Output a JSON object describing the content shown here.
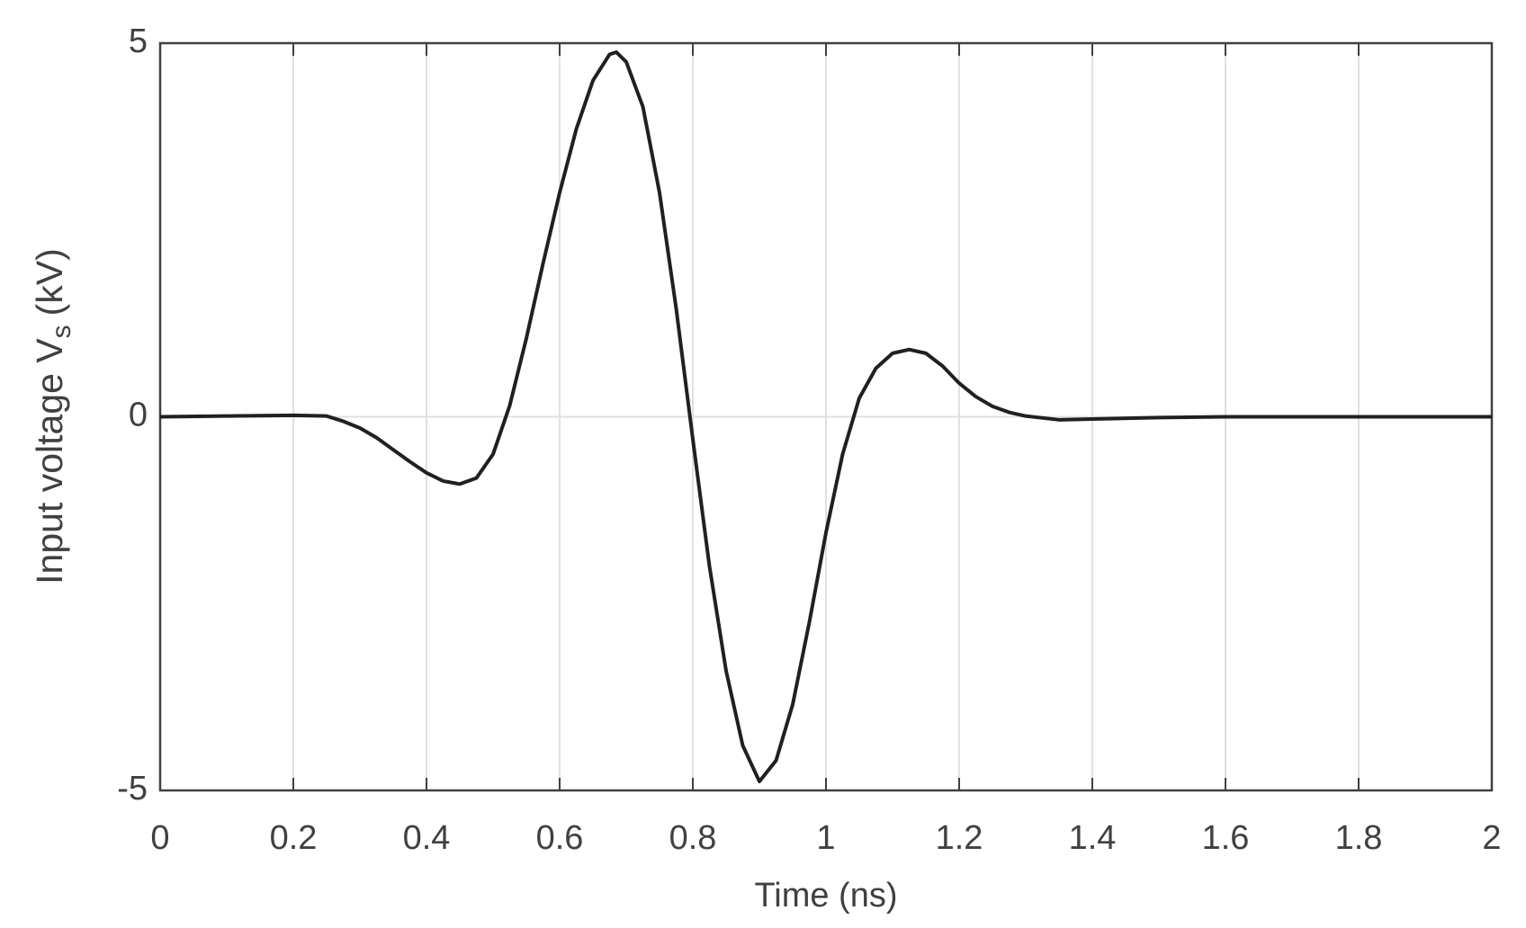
{
  "chart_data": {
    "type": "line",
    "x_label": "Time (ns)",
    "y_label": "Input voltage V",
    "y_label_subscript": "s",
    "y_label_unit": "(kV)",
    "x": [
      0,
      0.1,
      0.2,
      0.25,
      0.275,
      0.3,
      0.325,
      0.35,
      0.375,
      0.4,
      0.425,
      0.45,
      0.475,
      0.5,
      0.525,
      0.55,
      0.575,
      0.6,
      0.625,
      0.65,
      0.675,
      0.685,
      0.7,
      0.725,
      0.75,
      0.775,
      0.8,
      0.825,
      0.85,
      0.875,
      0.9,
      0.925,
      0.95,
      0.975,
      1.0,
      1.025,
      1.05,
      1.075,
      1.1,
      1.125,
      1.15,
      1.175,
      1.2,
      1.225,
      1.25,
      1.275,
      1.3,
      1.35,
      1.4,
      1.5,
      1.6,
      1.8,
      2.0
    ],
    "series": [
      {
        "color": "#231f20",
        "values": [
          0,
          0.01,
          0.02,
          0.01,
          -0.06,
          -0.15,
          -0.28,
          -0.44,
          -0.6,
          -0.75,
          -0.86,
          -0.9,
          -0.82,
          -0.5,
          0.15,
          1.05,
          2.05,
          3.0,
          3.85,
          4.5,
          4.85,
          4.88,
          4.75,
          4.15,
          3.0,
          1.45,
          -0.3,
          -2.0,
          -3.4,
          -4.4,
          -4.88,
          -4.6,
          -3.85,
          -2.75,
          -1.55,
          -0.5,
          0.25,
          0.65,
          0.85,
          0.9,
          0.85,
          0.68,
          0.45,
          0.27,
          0.14,
          0.06,
          0.01,
          -0.04,
          -0.03,
          -0.01,
          0,
          0,
          0
        ]
      }
    ],
    "xlim": [
      0,
      2
    ],
    "xticks": [
      0,
      0.2,
      0.4,
      0.6,
      0.8,
      1,
      1.2,
      1.4,
      1.6,
      1.8,
      2
    ],
    "ylim": [
      -5,
      5
    ],
    "yticks": [
      -5,
      0,
      5
    ],
    "grid": true
  }
}
